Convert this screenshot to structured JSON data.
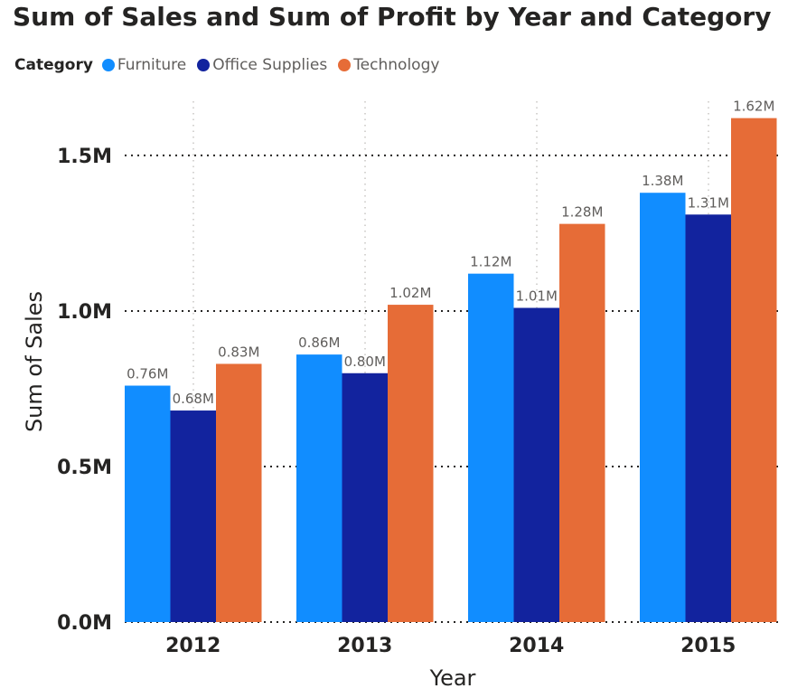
{
  "chart_data": {
    "type": "bar",
    "title": "Sum of Sales and Sum of Profit by Year and Category",
    "legend_title": "Category",
    "legend_position": "top-left",
    "xlabel": "Year",
    "ylabel": "Sum of Sales",
    "categories": [
      "2012",
      "2013",
      "2014",
      "2015"
    ],
    "series": [
      {
        "name": "Furniture",
        "color": "#118dff",
        "values": [
          0.76,
          0.86,
          1.12,
          1.38
        ],
        "labels": [
          "0.76M",
          "0.86M",
          "1.12M",
          "1.38M"
        ]
      },
      {
        "name": "Office Supplies",
        "color": "#12239e",
        "values": [
          0.68,
          0.8,
          1.01,
          1.31
        ],
        "labels": [
          "0.68M",
          "0.80M",
          "1.01M",
          "1.31M"
        ]
      },
      {
        "name": "Technology",
        "color": "#e66c37",
        "values": [
          0.83,
          1.02,
          1.28,
          1.62
        ],
        "labels": [
          "0.83M",
          "1.02M",
          "1.28M",
          "1.62M"
        ]
      }
    ],
    "ylim": [
      0,
      1.68
    ],
    "yticks": [
      0,
      0.5,
      1.0,
      1.5
    ],
    "ytick_labels": [
      "0.0M",
      "0.5M",
      "1.0M",
      "1.5M"
    ],
    "grid": true
  }
}
